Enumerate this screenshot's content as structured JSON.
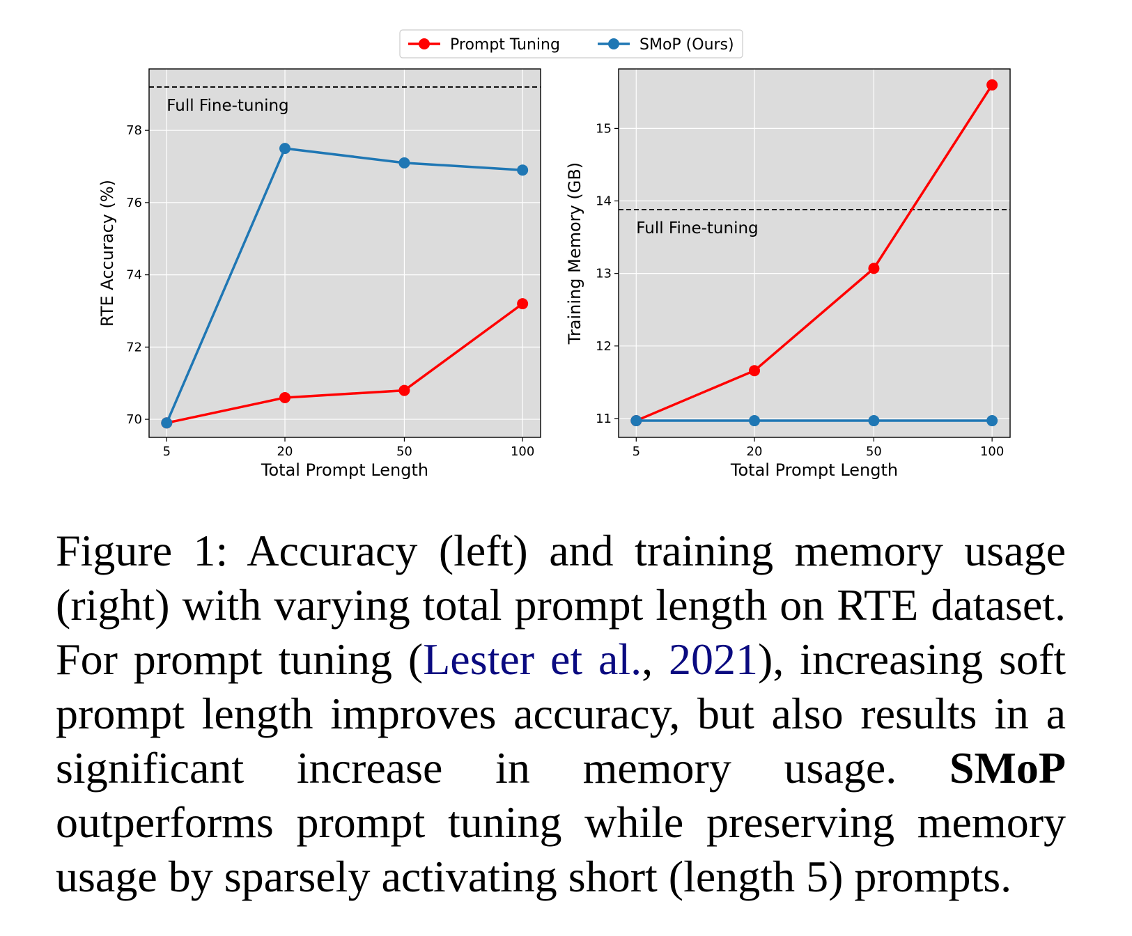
{
  "legend": {
    "items": [
      {
        "label": "Prompt Tuning",
        "color": "#ff0000"
      },
      {
        "label": "SMoP (Ours)",
        "color": "#1f77b4"
      }
    ],
    "placement": "top-center"
  },
  "chart_data": [
    {
      "type": "line",
      "categories": [
        "5",
        "20",
        "50",
        "100"
      ],
      "xlabel": "Total Prompt Length",
      "ylabel": "RTE Accuracy (%)",
      "ylim": [
        69.5,
        79.7
      ],
      "yticks": [
        "70",
        "72",
        "74",
        "76",
        "78"
      ],
      "grid": true,
      "series": [
        {
          "name": "Prompt Tuning",
          "color": "#ff0000",
          "values": [
            69.9,
            70.6,
            70.8,
            73.2
          ]
        },
        {
          "name": "SMoP (Ours)",
          "color": "#1f77b4",
          "values": [
            69.9,
            77.5,
            77.1,
            76.9
          ]
        }
      ],
      "reference_line": {
        "label": "Full Fine-tuning",
        "value": 79.2
      }
    },
    {
      "type": "line",
      "categories": [
        "5",
        "20",
        "50",
        "100"
      ],
      "xlabel": "Total Prompt Length",
      "ylabel": "Training Memory (GB)",
      "ylim": [
        10.74,
        15.82
      ],
      "yticks": [
        "11",
        "12",
        "13",
        "14",
        "15"
      ],
      "grid": true,
      "series": [
        {
          "name": "Prompt Tuning",
          "color": "#ff0000",
          "values": [
            10.97,
            11.66,
            13.07,
            15.6
          ]
        },
        {
          "name": "SMoP (Ours)",
          "color": "#1f77b4",
          "values": [
            10.97,
            10.97,
            10.97,
            10.97
          ]
        }
      ],
      "reference_line": {
        "label": "Full Fine-tuning",
        "value": 13.88
      }
    }
  ],
  "caption": {
    "p1": "Figure 1: Accuracy (left) and training memory usage (right) with varying total prompt length on RTE dataset. For prompt tuning (",
    "cite_author": "Lester et al.",
    "cite_sep": ", ",
    "cite_year": "2021",
    "p2": "), increasing soft prompt length improves accuracy, but also results in a significant increase in memory usage. ",
    "bold": "SMoP",
    "p3": " outperforms prompt tuning while preserving memory usage by sparsely activating short (length 5) prompts."
  }
}
